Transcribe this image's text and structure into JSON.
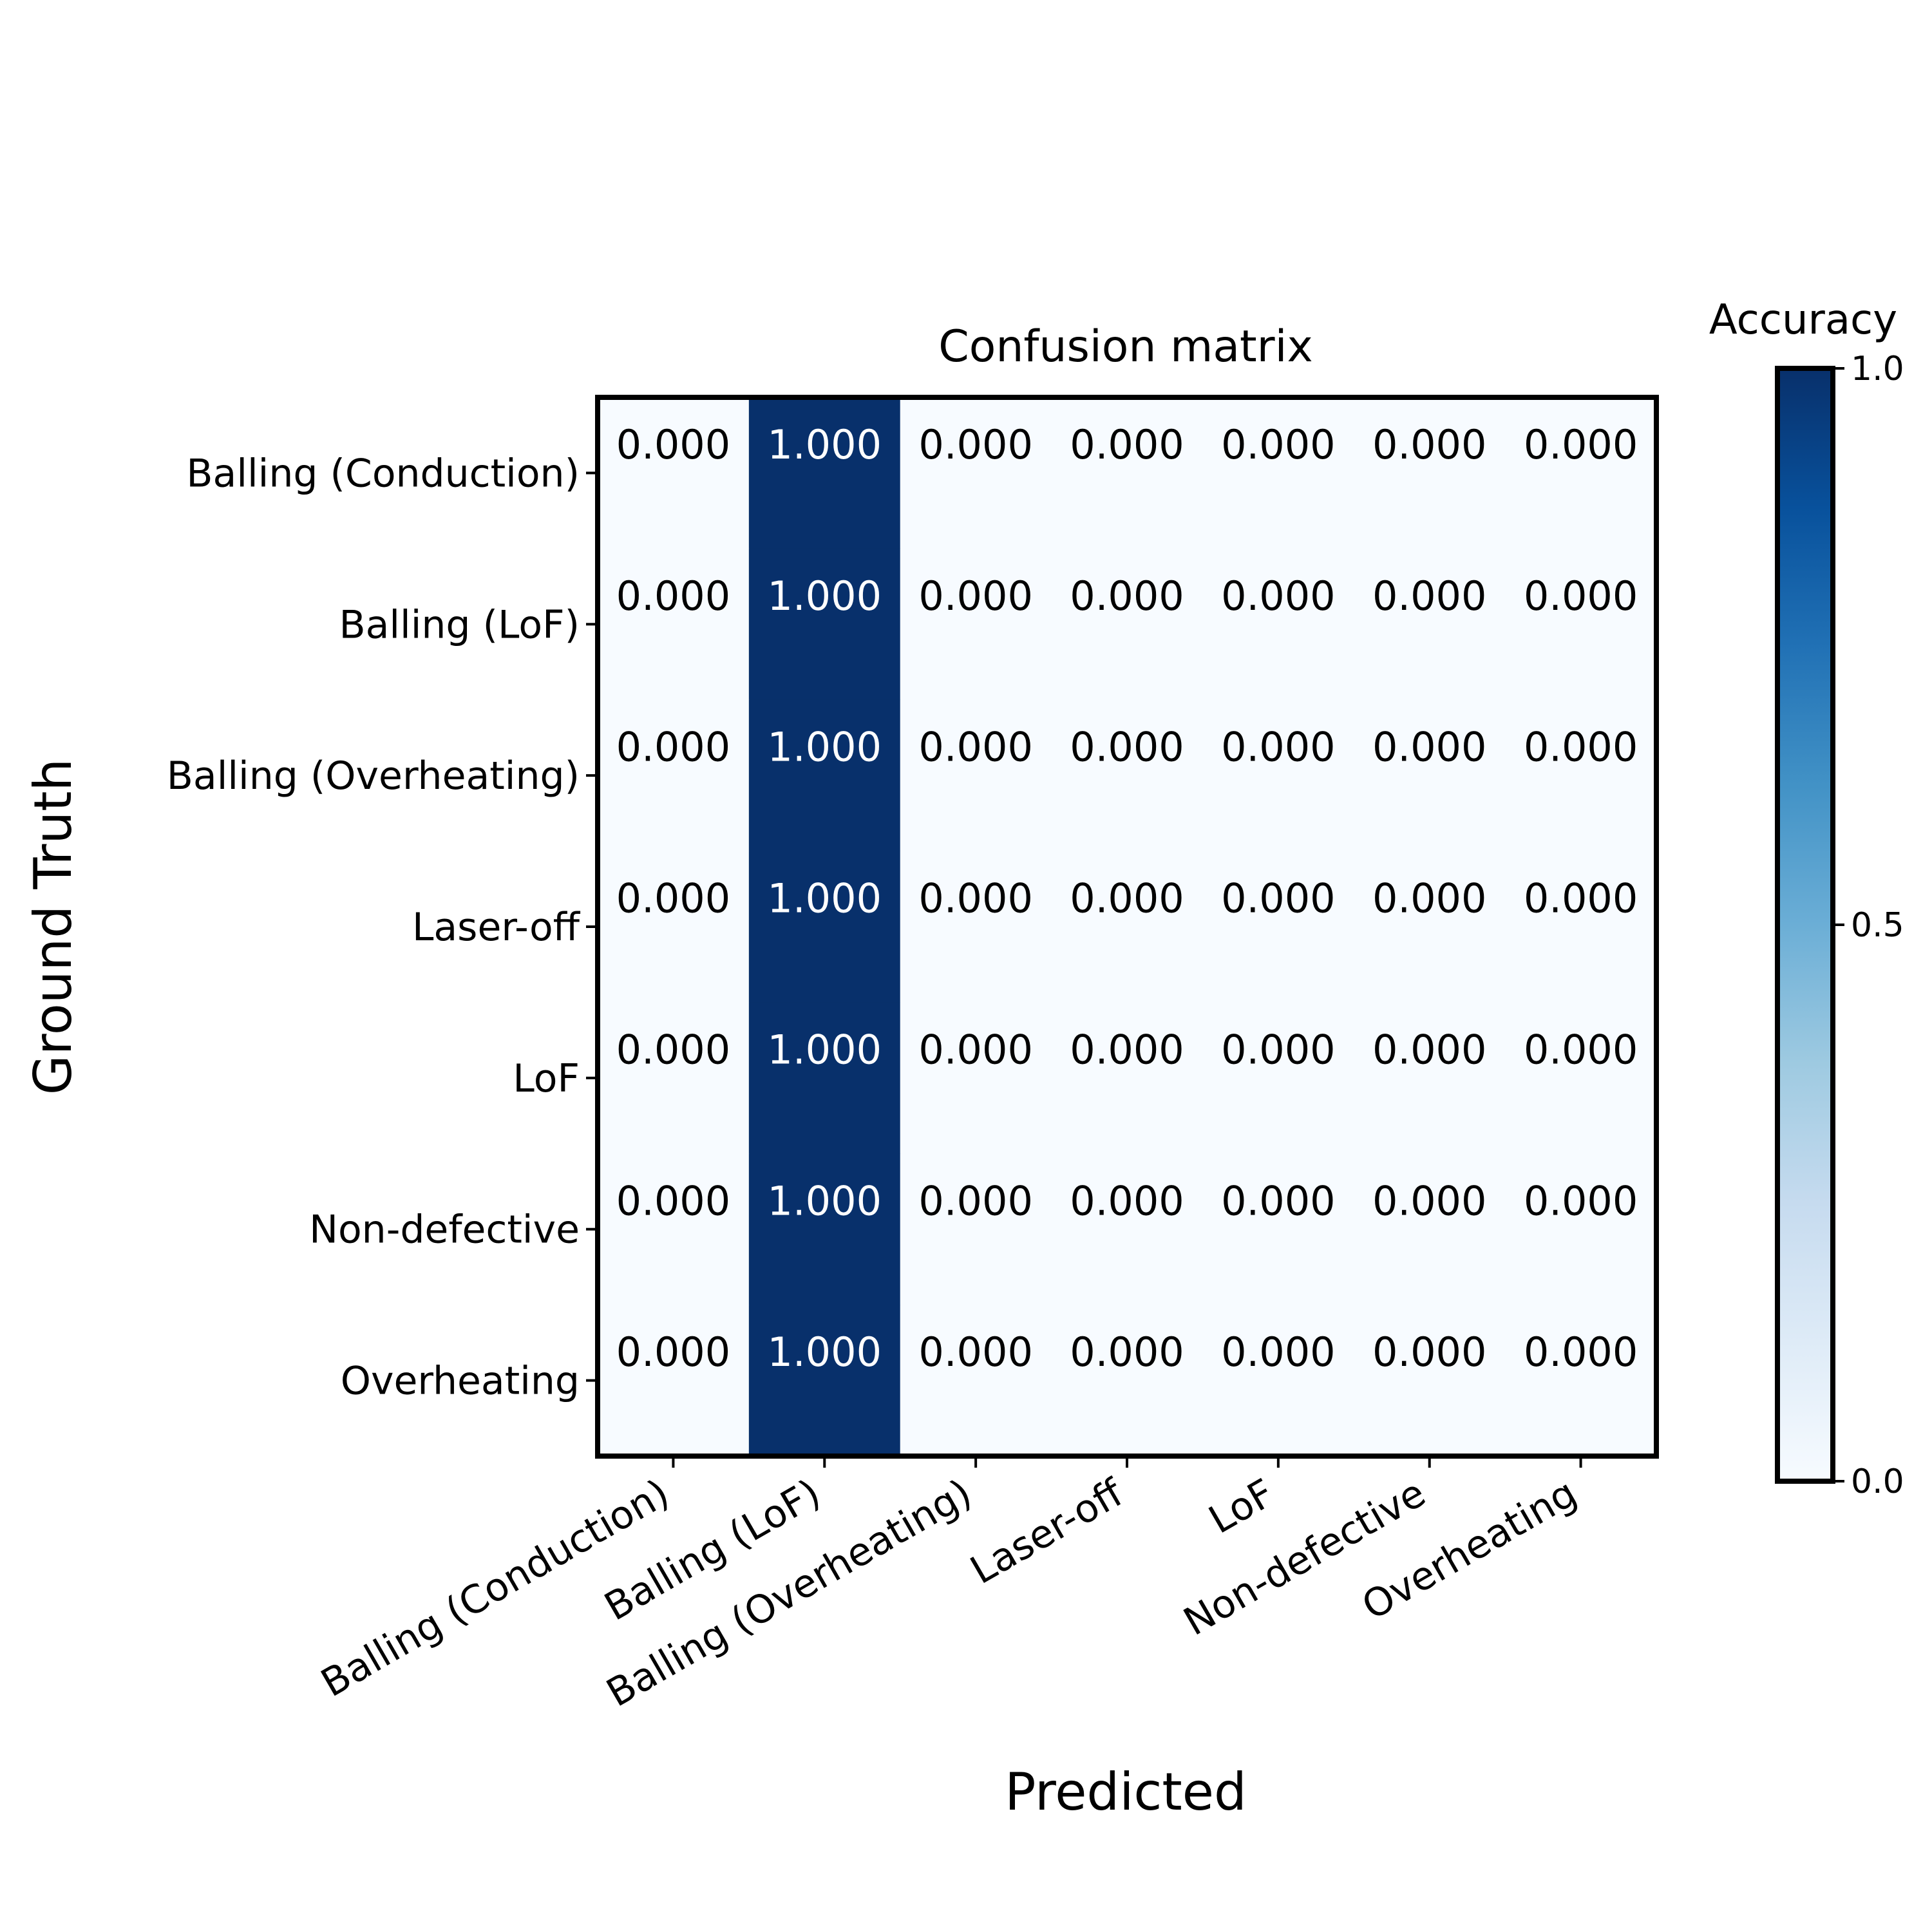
{
  "chart_data": {
    "type": "heatmap",
    "title": "Confusion matrix",
    "xlabel": "Predicted",
    "ylabel": "Ground Truth",
    "x_categories": [
      "Balling (Conduction)",
      "Balling (LoF)",
      "Balling (Overheating)",
      "Laser-off",
      "LoF",
      "Non-defective",
      "Overheating"
    ],
    "y_categories": [
      "Balling (Conduction)",
      "Balling (LoF)",
      "Balling (Overheating)",
      "Laser-off",
      "LoF",
      "Non-defective",
      "Overheating"
    ],
    "values": [
      [
        0,
        1,
        0,
        0,
        0,
        0,
        0
      ],
      [
        0,
        1,
        0,
        0,
        0,
        0,
        0
      ],
      [
        0,
        1,
        0,
        0,
        0,
        0,
        0
      ],
      [
        0,
        1,
        0,
        0,
        0,
        0,
        0
      ],
      [
        0,
        1,
        0,
        0,
        0,
        0,
        0
      ],
      [
        0,
        1,
        0,
        0,
        0,
        0,
        0
      ],
      [
        0,
        1,
        0,
        0,
        0,
        0,
        0
      ]
    ],
    "cell_labels": [
      [
        "0.000",
        "1.000",
        "0.000",
        "0.000",
        "0.000",
        "0.000",
        "0.000"
      ],
      [
        "0.000",
        "1.000",
        "0.000",
        "0.000",
        "0.000",
        "0.000",
        "0.000"
      ],
      [
        "0.000",
        "1.000",
        "0.000",
        "0.000",
        "0.000",
        "0.000",
        "0.000"
      ],
      [
        "0.000",
        "1.000",
        "0.000",
        "0.000",
        "0.000",
        "0.000",
        "0.000"
      ],
      [
        "0.000",
        "1.000",
        "0.000",
        "0.000",
        "0.000",
        "0.000",
        "0.000"
      ],
      [
        "0.000",
        "1.000",
        "0.000",
        "0.000",
        "0.000",
        "0.000",
        "0.000"
      ],
      [
        "0.000",
        "1.000",
        "0.000",
        "0.000",
        "0.000",
        "0.000",
        "0.000"
      ]
    ],
    "colormap": "Blues",
    "value_range": [
      0,
      1
    ],
    "colorbar": {
      "label": "Accuracy",
      "ticks": [
        0,
        0.5,
        1
      ],
      "tick_labels": [
        "0.0",
        "0.5",
        "1.0"
      ]
    },
    "grid": false
  }
}
